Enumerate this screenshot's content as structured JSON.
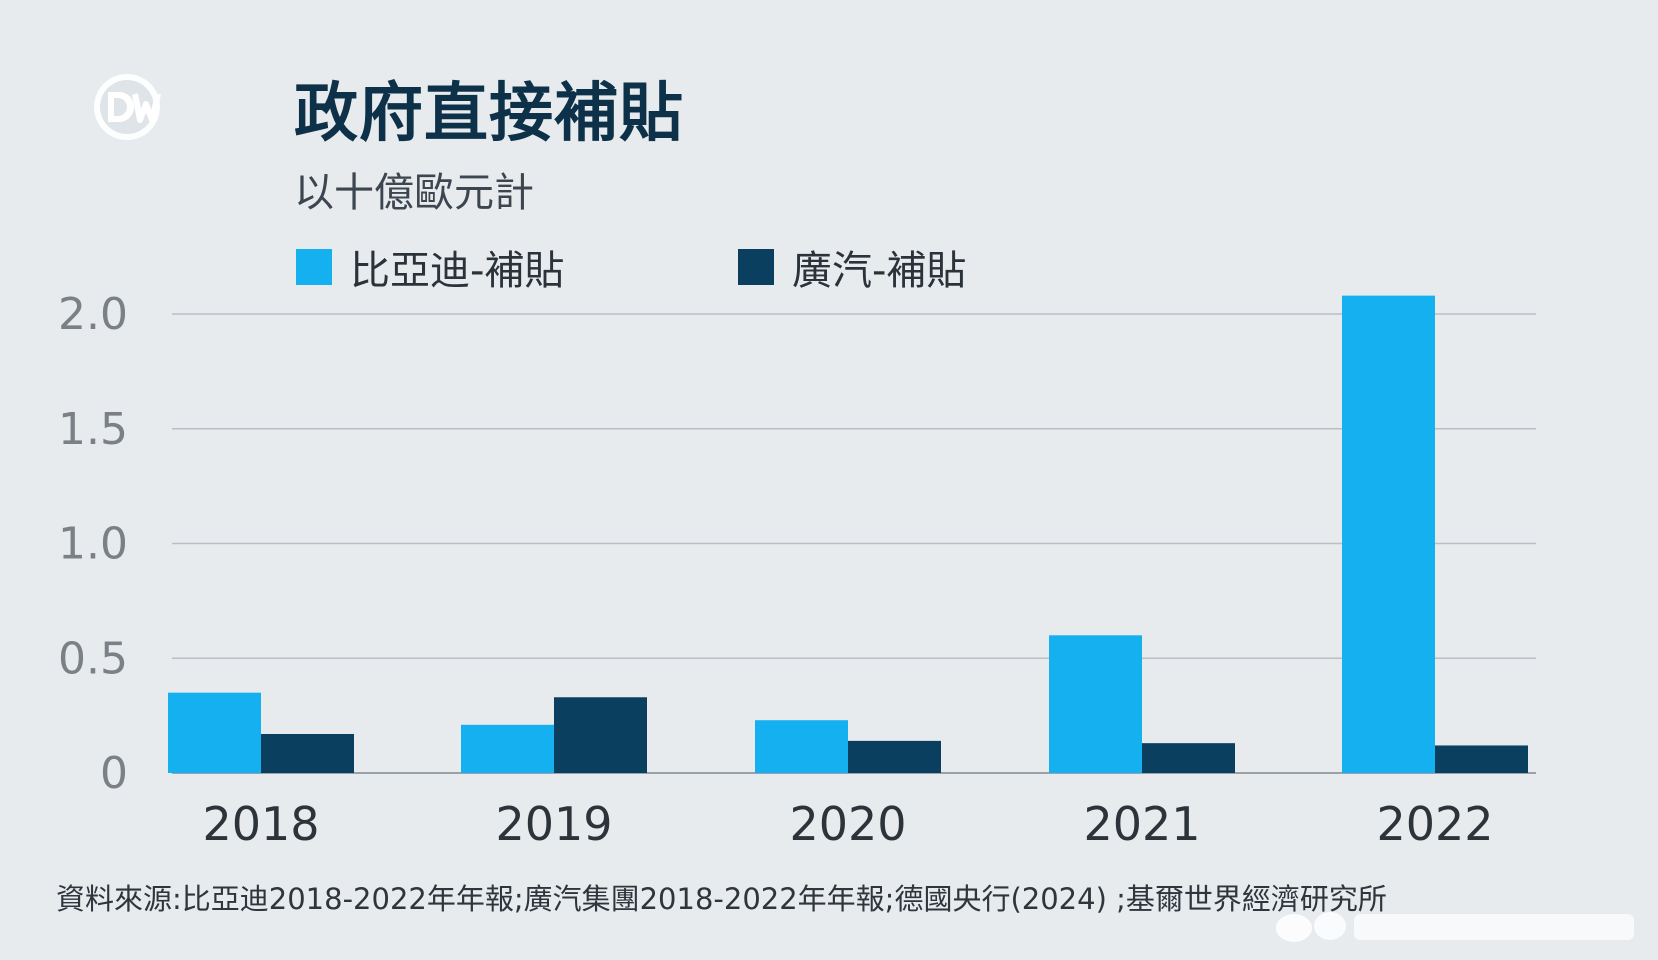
{
  "header": {
    "title": "政府直接補貼",
    "subtitle": "以十億歐元計"
  },
  "brand": {
    "logo_icon": "dw-logo-icon",
    "logo_text": "DW"
  },
  "colors": {
    "background": "#e7ebee",
    "title": "#0c3148",
    "byd": "#15b0f0",
    "gac": "#0a3f60",
    "gridline": "#b9bfc5",
    "axis_text": "#7b8087"
  },
  "chart_data": {
    "type": "bar",
    "title": "政府直接補貼",
    "subtitle": "以十億歐元計",
    "categories": [
      "2018",
      "2019",
      "2020",
      "2021",
      "2022"
    ],
    "series": [
      {
        "name": "比亞迪-補貼",
        "values": [
          0.35,
          0.21,
          0.23,
          0.6,
          2.08
        ]
      },
      {
        "name": "廣汽-補貼",
        "values": [
          0.17,
          0.33,
          0.14,
          0.13,
          0.12
        ]
      }
    ],
    "yticks": [
      "0",
      "0.5",
      "1.0",
      "1.5",
      "2.0"
    ],
    "ytick_values": [
      0,
      0.5,
      1.0,
      1.5,
      2.0
    ],
    "ylim": [
      0,
      2.0
    ],
    "xlabel": "",
    "ylabel": "",
    "grid": true,
    "legend": "top-left"
  },
  "footer": {
    "source": "資料來源:比亞迪2018-2022年年報;廣汽集團2018-2022年年報;德國央行(2024) ;基爾世界經濟研究所"
  }
}
